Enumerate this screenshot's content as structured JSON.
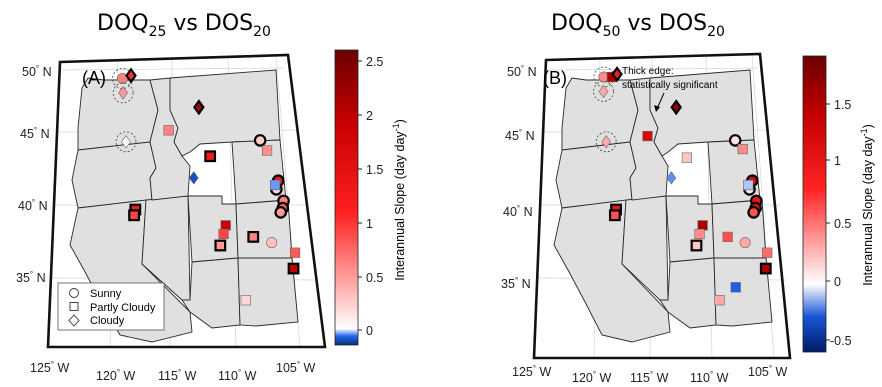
{
  "panels": [
    {
      "id": "left",
      "label": "(A)",
      "title": {
        "base1": "DOQ",
        "sub1": "25",
        "mid": " vs DOS",
        "sub2": "20"
      },
      "lat_labels": [
        "50",
        "45",
        "40",
        "35"
      ],
      "lon_labels": [
        "125",
        "120",
        "115",
        "110",
        "105"
      ],
      "lat_suffix": "N",
      "lon_suffix": "W",
      "colorbar": {
        "ticks": [
          "2.5",
          "2",
          "1.5",
          "1",
          "0.5",
          "0"
        ],
        "extra_tick": "",
        "label": "Interannual Slope (day day",
        "label_sup": "-1",
        "label_end": ")"
      },
      "legend": [
        "Sunny",
        "Partly Cloudy",
        "Cloudy"
      ],
      "annotation": [
        "",
        ""
      ]
    },
    {
      "id": "right",
      "label": "(B)",
      "title": {
        "base1": "DOQ",
        "sub1": "50",
        "mid": " vs DOS",
        "sub2": "20"
      },
      "lat_labels": [
        "50",
        "45",
        "40",
        "35"
      ],
      "lon_labels": [
        "125",
        "120",
        "115",
        "110",
        "105"
      ],
      "lat_suffix": "N",
      "lon_suffix": "W",
      "colorbar": {
        "ticks": [
          "1.5",
          "1",
          "0.5",
          "0"
        ],
        "extra_tick": "-0.5",
        "label": "Interannual Slope (day day",
        "label_sup": "-1",
        "label_end": ")"
      },
      "legend": [],
      "annotation": [
        "Thick edge:",
        "statistically significant"
      ]
    }
  ],
  "chart_data": [
    {
      "type": "scatter",
      "panel": "A",
      "colorbar_range": [
        -0.15,
        2.6
      ],
      "colormap": "blue-white-red",
      "x_unit": "degrees longitude (W negative)",
      "y_unit": "degrees latitude",
      "stations": [
        {
          "lon": -121.0,
          "lat": 48.3,
          "shape": "circle",
          "value": 0.6,
          "significant": false,
          "dashed_ring": true
        },
        {
          "lon": -120.9,
          "lat": 47.3,
          "shape": "diamond",
          "value": 0.5,
          "significant": false,
          "dashed_ring": true
        },
        {
          "lon": -120.2,
          "lat": 48.5,
          "shape": "diamond",
          "value": 1.0,
          "significant": true,
          "dashed_ring": false
        },
        {
          "lon": -120.5,
          "lat": 43.9,
          "shape": "diamond",
          "value": 0.0,
          "significant": false,
          "dashed_ring": true
        },
        {
          "lon": -113.8,
          "lat": 46.3,
          "shape": "diamond",
          "value": 2.2,
          "significant": true,
          "dashed_ring": false
        },
        {
          "lon": -116.6,
          "lat": 44.7,
          "shape": "square",
          "value": 0.6,
          "significant": false,
          "dashed_ring": false
        },
        {
          "lon": -112.8,
          "lat": 42.9,
          "shape": "square",
          "value": 1.3,
          "significant": true,
          "dashed_ring": false
        },
        {
          "lon": -114.3,
          "lat": 41.4,
          "shape": "diamond",
          "value": -0.1,
          "significant": false,
          "dashed_ring": false
        },
        {
          "lon": -108.2,
          "lat": 44.0,
          "shape": "circle",
          "value": 0.25,
          "significant": true,
          "dashed_ring": false
        },
        {
          "lon": -107.6,
          "lat": 43.3,
          "shape": "square",
          "value": 0.55,
          "significant": false,
          "dashed_ring": false
        },
        {
          "lon": -106.7,
          "lat": 41.2,
          "shape": "circle",
          "value": 1.3,
          "significant": true,
          "dashed_ring": false
        },
        {
          "lon": -106.9,
          "lat": 40.6,
          "shape": "circle",
          "value": 0.2,
          "significant": true,
          "dashed_ring": false
        },
        {
          "lon": -107.0,
          "lat": 40.9,
          "shape": "square",
          "value": -0.05,
          "significant": false,
          "dashed_ring": false
        },
        {
          "lon": -106.3,
          "lat": 39.8,
          "shape": "circle",
          "value": 0.6,
          "significant": true,
          "dashed_ring": false
        },
        {
          "lon": -106.4,
          "lat": 39.3,
          "shape": "circle",
          "value": 0.8,
          "significant": true,
          "dashed_ring": false
        },
        {
          "lon": -106.6,
          "lat": 39.0,
          "shape": "circle",
          "value": 0.5,
          "significant": true,
          "dashed_ring": false
        },
        {
          "lon": -119.5,
          "lat": 39.2,
          "shape": "square",
          "value": 1.3,
          "significant": true,
          "dashed_ring": false
        },
        {
          "lon": -119.6,
          "lat": 38.8,
          "shape": "square",
          "value": 0.9,
          "significant": true,
          "dashed_ring": false
        },
        {
          "lon": -111.5,
          "lat": 38.1,
          "shape": "square",
          "value": 1.9,
          "significant": false,
          "dashed_ring": false
        },
        {
          "lon": -111.7,
          "lat": 37.5,
          "shape": "square",
          "value": 0.9,
          "significant": false,
          "dashed_ring": false
        },
        {
          "lon": -112.0,
          "lat": 36.7,
          "shape": "square",
          "value": 0.5,
          "significant": true,
          "dashed_ring": false
        },
        {
          "lon": -109.1,
          "lat": 37.3,
          "shape": "square",
          "value": 0.6,
          "significant": true,
          "dashed_ring": false
        },
        {
          "lon": -107.5,
          "lat": 36.9,
          "shape": "circle",
          "value": 0.3,
          "significant": false,
          "dashed_ring": false
        },
        {
          "lon": -105.5,
          "lat": 36.2,
          "shape": "square",
          "value": 0.8,
          "significant": false,
          "dashed_ring": false
        },
        {
          "lon": -105.7,
          "lat": 35.1,
          "shape": "square",
          "value": 2.0,
          "significant": true,
          "dashed_ring": false
        },
        {
          "lon": -109.9,
          "lat": 32.9,
          "shape": "square",
          "value": 0.2,
          "significant": false,
          "dashed_ring": false
        }
      ]
    },
    {
      "type": "scatter",
      "panel": "B",
      "colorbar_range": [
        -0.55,
        1.85
      ],
      "colormap": "blue-white-red",
      "x_unit": "degrees longitude (W negative)",
      "y_unit": "degrees latitude",
      "stations": [
        {
          "lon": -121.0,
          "lat": 48.4,
          "shape": "circle",
          "value": 0.4,
          "significant": false,
          "dashed_ring": true
        },
        {
          "lon": -121.0,
          "lat": 47.4,
          "shape": "diamond",
          "value": 0.3,
          "significant": false,
          "dashed_ring": true
        },
        {
          "lon": -120.2,
          "lat": 48.4,
          "shape": "square",
          "value": 1.5,
          "significant": false,
          "dashed_ring": false
        },
        {
          "lon": -119.7,
          "lat": 48.6,
          "shape": "diamond",
          "value": 0.9,
          "significant": true,
          "dashed_ring": false
        },
        {
          "lon": -120.6,
          "lat": 43.9,
          "shape": "diamond",
          "value": 0.3,
          "significant": false,
          "dashed_ring": true
        },
        {
          "lon": -113.8,
          "lat": 46.3,
          "shape": "diamond",
          "value": 1.6,
          "significant": true,
          "dashed_ring": false
        },
        {
          "lon": -116.6,
          "lat": 44.3,
          "shape": "square",
          "value": 1.2,
          "significant": false,
          "dashed_ring": false
        },
        {
          "lon": -112.8,
          "lat": 42.8,
          "shape": "square",
          "value": 0.2,
          "significant": false,
          "dashed_ring": false
        },
        {
          "lon": -114.3,
          "lat": 41.4,
          "shape": "diamond",
          "value": -0.2,
          "significant": false,
          "dashed_ring": false
        },
        {
          "lon": -108.1,
          "lat": 44.0,
          "shape": "circle",
          "value": 0.1,
          "significant": true,
          "dashed_ring": false
        },
        {
          "lon": -107.4,
          "lat": 43.4,
          "shape": "square",
          "value": 0.4,
          "significant": false,
          "dashed_ring": false
        },
        {
          "lon": -106.6,
          "lat": 41.2,
          "shape": "circle",
          "value": 1.2,
          "significant": true,
          "dashed_ring": false
        },
        {
          "lon": -106.9,
          "lat": 40.6,
          "shape": "circle",
          "value": 0.1,
          "significant": true,
          "dashed_ring": false
        },
        {
          "lon": -107.0,
          "lat": 40.9,
          "shape": "square",
          "value": -0.1,
          "significant": false,
          "dashed_ring": false
        },
        {
          "lon": -106.3,
          "lat": 39.8,
          "shape": "circle",
          "value": 1.0,
          "significant": true,
          "dashed_ring": false
        },
        {
          "lon": -106.4,
          "lat": 39.3,
          "shape": "circle",
          "value": 1.1,
          "significant": true,
          "dashed_ring": false
        },
        {
          "lon": -106.6,
          "lat": 39.0,
          "shape": "circle",
          "value": 0.6,
          "significant": true,
          "dashed_ring": false
        },
        {
          "lon": -119.5,
          "lat": 39.2,
          "shape": "square",
          "value": 1.0,
          "significant": true,
          "dashed_ring": false
        },
        {
          "lon": -119.6,
          "lat": 38.8,
          "shape": "square",
          "value": 0.6,
          "significant": true,
          "dashed_ring": false
        },
        {
          "lon": -111.4,
          "lat": 38.1,
          "shape": "square",
          "value": 1.5,
          "significant": false,
          "dashed_ring": false
        },
        {
          "lon": -111.7,
          "lat": 37.5,
          "shape": "square",
          "value": 0.4,
          "significant": false,
          "dashed_ring": false
        },
        {
          "lon": -112.0,
          "lat": 36.7,
          "shape": "square",
          "value": 0.2,
          "significant": true,
          "dashed_ring": false
        },
        {
          "lon": -109.1,
          "lat": 37.3,
          "shape": "square",
          "value": 0.6,
          "significant": false,
          "dashed_ring": false
        },
        {
          "lon": -107.5,
          "lat": 36.9,
          "shape": "circle",
          "value": 0.3,
          "significant": false,
          "dashed_ring": false
        },
        {
          "lon": -105.5,
          "lat": 36.2,
          "shape": "square",
          "value": 0.5,
          "significant": false,
          "dashed_ring": false
        },
        {
          "lon": -105.7,
          "lat": 35.1,
          "shape": "square",
          "value": 1.5,
          "significant": true,
          "dashed_ring": false
        },
        {
          "lon": -108.5,
          "lat": 33.8,
          "shape": "square",
          "value": -0.3,
          "significant": false,
          "dashed_ring": false
        },
        {
          "lon": -110.0,
          "lat": 32.9,
          "shape": "square",
          "value": 0.3,
          "significant": false,
          "dashed_ring": false
        }
      ]
    }
  ]
}
